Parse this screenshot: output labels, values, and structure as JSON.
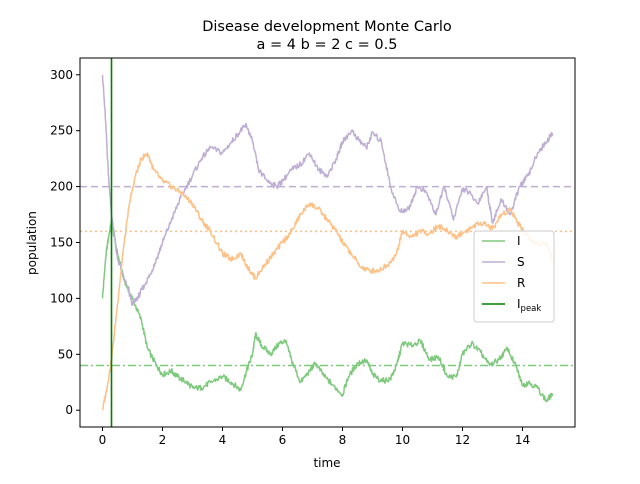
{
  "chart_data": {
    "type": "line",
    "title_line1": "Disease development Monte Carlo",
    "title_line2": "a = 4   b = 2   c = 0.5",
    "xlabel": "time",
    "ylabel": "population",
    "xlim": [
      -0.75,
      15.75
    ],
    "ylim": [
      -15,
      315
    ],
    "xticks": [
      0,
      2,
      4,
      6,
      8,
      10,
      12,
      14
    ],
    "yticks": [
      0,
      50,
      100,
      150,
      200,
      250,
      300
    ],
    "grid": false,
    "legend_position": "center-right",
    "series": [
      {
        "name": "I",
        "color": "#7fc97f",
        "x": [
          0,
          0.1,
          0.2,
          0.3,
          0.5,
          0.7,
          1.0,
          1.3,
          1.5,
          1.8,
          2.0,
          2.3,
          2.5,
          2.8,
          3.0,
          3.3,
          3.6,
          4.0,
          4.3,
          4.6,
          4.8,
          5.0,
          5.1,
          5.3,
          5.6,
          5.9,
          6.1,
          6.3,
          6.6,
          6.9,
          7.1,
          7.4,
          7.7,
          8.0,
          8.2,
          8.5,
          8.8,
          9.0,
          9.3,
          9.6,
          9.8,
          10.0,
          10.3,
          10.6,
          10.9,
          11.2,
          11.5,
          11.8,
          12.0,
          12.3,
          12.6,
          12.9,
          13.2,
          13.5,
          13.8,
          14.0,
          14.2,
          14.5,
          14.8,
          15.0
        ],
        "y": [
          100,
          135,
          155,
          168,
          140,
          118,
          100,
          80,
          55,
          40,
          32,
          35,
          30,
          25,
          20,
          20,
          25,
          30,
          25,
          18,
          35,
          50,
          68,
          58,
          50,
          60,
          62,
          45,
          25,
          35,
          42,
          30,
          22,
          14,
          30,
          42,
          45,
          32,
          26,
          28,
          40,
          60,
          58,
          62,
          45,
          48,
          30,
          30,
          50,
          60,
          52,
          40,
          45,
          55,
          38,
          22,
          25,
          20,
          8,
          15
        ]
      },
      {
        "name": "S",
        "color": "#beaed4",
        "x": [
          0,
          0.1,
          0.2,
          0.3,
          0.5,
          0.8,
          1.0,
          1.2,
          1.4,
          1.6,
          1.8,
          2.0,
          2.3,
          2.6,
          3.0,
          3.3,
          3.6,
          4.0,
          4.3,
          4.6,
          4.8,
          5.0,
          5.2,
          5.5,
          5.8,
          6.0,
          6.3,
          6.6,
          6.9,
          7.2,
          7.5,
          7.8,
          8.0,
          8.3,
          8.6,
          8.8,
          9.0,
          9.3,
          9.6,
          9.9,
          10.2,
          10.5,
          10.8,
          11.1,
          11.4,
          11.7,
          12.0,
          12.2,
          12.5,
          12.8,
          13.0,
          13.3,
          13.6,
          13.9,
          14.2,
          14.5,
          14.8,
          15.0
        ],
        "y": [
          300,
          260,
          210,
          175,
          135,
          112,
          95,
          102,
          112,
          122,
          135,
          150,
          170,
          190,
          210,
          225,
          235,
          230,
          240,
          250,
          255,
          240,
          215,
          205,
          200,
          205,
          215,
          220,
          230,
          215,
          210,
          225,
          240,
          250,
          240,
          235,
          248,
          240,
          200,
          178,
          180,
          200,
          195,
          175,
          200,
          170,
          198,
          195,
          185,
          200,
          168,
          188,
          175,
          200,
          210,
          230,
          240,
          248
        ]
      },
      {
        "name": "R",
        "color": "#fdc086",
        "x": [
          0,
          0.15,
          0.3,
          0.5,
          0.7,
          0.9,
          1.1,
          1.3,
          1.5,
          1.7,
          2.0,
          2.3,
          2.6,
          3.0,
          3.3,
          3.6,
          4.0,
          4.3,
          4.6,
          4.9,
          5.1,
          5.4,
          5.7,
          6.0,
          6.3,
          6.6,
          6.9,
          7.2,
          7.5,
          7.8,
          8.0,
          8.3,
          8.6,
          8.9,
          9.2,
          9.5,
          9.8,
          10.0,
          10.3,
          10.6,
          10.9,
          11.2,
          11.5,
          11.8,
          12.1,
          12.4,
          12.7,
          13.0,
          13.3,
          13.6,
          13.9,
          14.2,
          14.5,
          14.8,
          15.0
        ],
        "y": [
          0,
          20,
          45,
          95,
          145,
          185,
          210,
          225,
          230,
          215,
          205,
          200,
          195,
          185,
          170,
          160,
          140,
          135,
          140,
          125,
          118,
          130,
          140,
          150,
          160,
          175,
          185,
          180,
          170,
          160,
          150,
          140,
          128,
          125,
          125,
          130,
          140,
          160,
          155,
          160,
          158,
          165,
          160,
          155,
          160,
          165,
          168,
          162,
          175,
          180,
          165,
          155,
          148,
          150,
          135
        ]
      }
    ],
    "hlines": [
      {
        "series": "S",
        "y": 200,
        "style": "dashed",
        "color": "#beaed4"
      },
      {
        "series": "R",
        "y": 160,
        "style": "dotted",
        "color": "#fdc086"
      },
      {
        "series": "I",
        "y": 40,
        "style": "dashdot",
        "color": "#7fc97f"
      }
    ],
    "peak_line": {
      "name": "I_peak",
      "legend_base": "I",
      "legend_sub": "peak",
      "x": 0.3,
      "color": "#008000"
    }
  }
}
